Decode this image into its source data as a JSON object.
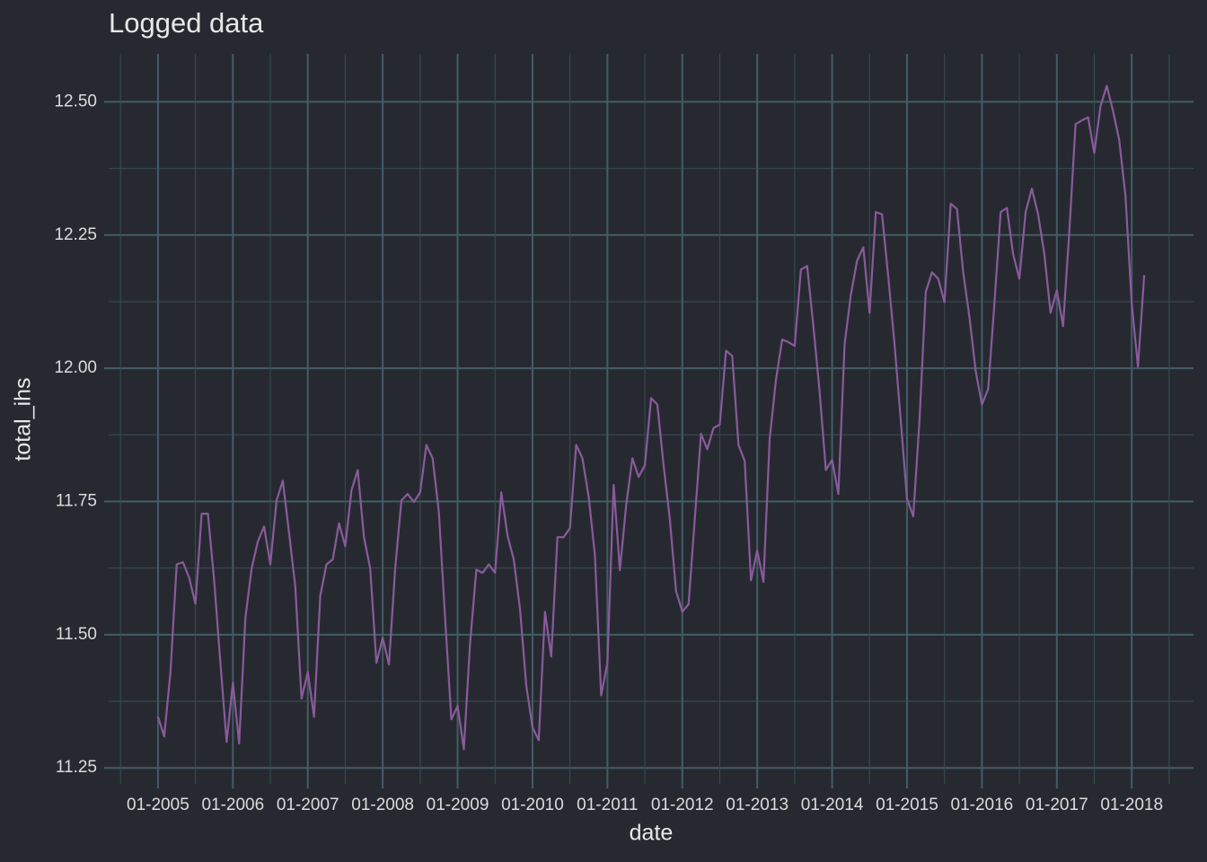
{
  "chart_data": {
    "type": "line",
    "title": "Logged data",
    "x_label": "date",
    "y_label": "total_ihs",
    "x": [
      "01-2005",
      "02-2005",
      "03-2005",
      "04-2005",
      "05-2005",
      "06-2005",
      "07-2005",
      "08-2005",
      "09-2005",
      "10-2005",
      "11-2005",
      "12-2005",
      "01-2006",
      "02-2006",
      "03-2006",
      "04-2006",
      "05-2006",
      "06-2006",
      "07-2006",
      "08-2006",
      "09-2006",
      "10-2006",
      "11-2006",
      "12-2006",
      "01-2007",
      "02-2007",
      "03-2007",
      "04-2007",
      "05-2007",
      "06-2007",
      "07-2007",
      "08-2007",
      "09-2007",
      "10-2007",
      "11-2007",
      "12-2007",
      "01-2008",
      "02-2008",
      "03-2008",
      "04-2008",
      "05-2008",
      "06-2008",
      "07-2008",
      "08-2008",
      "09-2008",
      "10-2008",
      "11-2008",
      "12-2008",
      "01-2009",
      "02-2009",
      "03-2009",
      "04-2009",
      "05-2009",
      "06-2009",
      "07-2009",
      "08-2009",
      "09-2009",
      "10-2009",
      "11-2009",
      "12-2009",
      "01-2010",
      "02-2010",
      "03-2010",
      "04-2010",
      "05-2010",
      "06-2010",
      "07-2010",
      "08-2010",
      "09-2010",
      "10-2010",
      "11-2010",
      "12-2010",
      "01-2011",
      "02-2011",
      "03-2011",
      "04-2011",
      "05-2011",
      "06-2011",
      "07-2011",
      "08-2011",
      "09-2011",
      "10-2011",
      "11-2011",
      "12-2011",
      "01-2012",
      "02-2012",
      "03-2012",
      "04-2012",
      "05-2012",
      "06-2012",
      "07-2012",
      "08-2012",
      "09-2012",
      "10-2012",
      "11-2012",
      "12-2012",
      "01-2013",
      "02-2013",
      "03-2013",
      "04-2013",
      "05-2013",
      "06-2013",
      "07-2013",
      "08-2013",
      "09-2013",
      "10-2013",
      "11-2013",
      "12-2013",
      "01-2014",
      "02-2014",
      "03-2014",
      "04-2014",
      "05-2014",
      "06-2014",
      "07-2014",
      "08-2014",
      "09-2014",
      "10-2014",
      "11-2014",
      "12-2014",
      "01-2015",
      "02-2015",
      "03-2015",
      "04-2015",
      "05-2015",
      "06-2015",
      "07-2015",
      "08-2015",
      "09-2015",
      "10-2015",
      "11-2015",
      "12-2015",
      "01-2016",
      "02-2016",
      "03-2016",
      "04-2016",
      "05-2016",
      "06-2016",
      "07-2016",
      "08-2016",
      "09-2016",
      "10-2016",
      "11-2016",
      "12-2016",
      "01-2017",
      "02-2017",
      "03-2017",
      "04-2017",
      "05-2017",
      "06-2017",
      "07-2017",
      "08-2017",
      "09-2017",
      "10-2017",
      "11-2017",
      "12-2017",
      "01-2018",
      "02-2018",
      "03-2018"
    ],
    "series": [
      {
        "color": "#8a5a9c",
        "values": [
          11.346,
          11.309,
          11.43,
          11.632,
          11.636,
          11.607,
          11.558,
          11.727,
          11.727,
          11.602,
          11.447,
          11.299,
          11.41,
          11.296,
          11.531,
          11.624,
          11.675,
          11.703,
          11.632,
          11.752,
          11.789,
          11.691,
          11.59,
          11.38,
          11.43,
          11.346,
          11.573,
          11.632,
          11.641,
          11.709,
          11.666,
          11.771,
          11.809,
          11.683,
          11.624,
          11.447,
          11.494,
          11.444,
          11.624,
          11.752,
          11.764,
          11.749,
          11.767,
          11.856,
          11.831,
          11.73,
          11.531,
          11.341,
          11.366,
          11.285,
          11.484,
          11.622,
          11.616,
          11.632,
          11.616,
          11.767,
          11.686,
          11.641,
          11.548,
          11.405,
          11.326,
          11.302,
          11.543,
          11.459,
          11.683,
          11.683,
          11.7,
          11.856,
          11.831,
          11.759,
          11.649,
          11.386,
          11.447,
          11.781,
          11.621,
          11.742,
          11.831,
          11.796,
          11.818,
          11.944,
          11.932,
          11.818,
          11.717,
          11.582,
          11.543,
          11.557,
          11.717,
          11.877,
          11.848,
          11.888,
          11.894,
          12.033,
          12.023,
          11.856,
          11.826,
          11.602,
          11.658,
          11.599,
          11.868,
          11.978,
          12.054,
          12.049,
          12.042,
          12.185,
          12.192,
          12.079,
          11.956,
          11.809,
          11.828,
          11.764,
          12.045,
          12.138,
          12.202,
          12.227,
          12.104,
          12.293,
          12.289,
          12.171,
          12.045,
          11.902,
          11.755,
          11.722,
          11.902,
          12.143,
          12.18,
          12.168,
          12.124,
          12.309,
          12.299,
          12.18,
          12.096,
          11.995,
          11.932,
          11.961,
          12.121,
          12.293,
          12.301,
          12.214,
          12.168,
          12.293,
          12.337,
          12.289,
          12.214,
          12.104,
          12.146,
          12.079,
          12.256,
          12.458,
          12.465,
          12.471,
          12.404,
          12.492,
          12.53,
          12.483,
          12.428,
          12.323,
          12.121,
          12.003,
          12.175
        ]
      }
    ],
    "xticks": [
      "01-2005",
      "01-2006",
      "01-2007",
      "01-2008",
      "01-2009",
      "01-2010",
      "01-2011",
      "01-2012",
      "01-2013",
      "01-2014",
      "01-2015",
      "01-2016",
      "01-2017",
      "01-2018"
    ],
    "ylim": [
      11.22,
      12.59
    ],
    "yticks": [
      {
        "value": 11.25,
        "label": "11.25"
      },
      {
        "value": 11.5,
        "label": "11.50"
      },
      {
        "value": 11.75,
        "label": "11.75"
      },
      {
        "value": 12,
        "label": "12.00"
      },
      {
        "value": 12.25,
        "label": "12.25"
      },
      {
        "value": 12.5,
        "label": "12.50"
      }
    ],
    "grid": true
  }
}
